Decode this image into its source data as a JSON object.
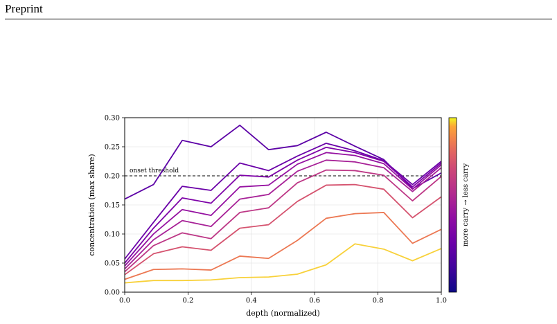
{
  "page": {
    "running_head": "Preprint"
  },
  "chart_data": {
    "type": "line",
    "title": "",
    "xlabel": "depth (normalized)",
    "ylabel": "concentration (max share)",
    "xlim": [
      0.0,
      1.0
    ],
    "ylim": [
      0.0,
      0.3
    ],
    "xticks": [
      0.0,
      0.2,
      0.4,
      0.6,
      0.8,
      1.0
    ],
    "xtick_labels": [
      "0.0",
      "0.2",
      "0.4",
      "0.6",
      "0.8",
      "1.0"
    ],
    "yticks": [
      0.0,
      0.05,
      0.1,
      0.15,
      0.2,
      0.25,
      0.3
    ],
    "ytick_labels": [
      "0.00",
      "0.05",
      "0.10",
      "0.15",
      "0.20",
      "0.25",
      "0.30"
    ],
    "grid": true,
    "threshold": {
      "y": 0.2,
      "label": "onset threshold",
      "style": "dashed",
      "color": "#000000"
    },
    "colorbar": {
      "label": "more carry  →  less carry",
      "colormap": "plasma",
      "position": "right"
    },
    "x": [
      0.0,
      0.0909,
      0.1818,
      0.2727,
      0.3636,
      0.4545,
      0.5455,
      0.6364,
      0.7273,
      0.8182,
      0.9091,
      1.0
    ],
    "series": [
      {
        "color": "#5c01a6",
        "values": [
          0.16,
          0.185,
          0.261,
          0.25,
          0.287,
          0.245,
          0.252,
          0.275,
          0.251,
          0.228,
          0.178,
          0.205
        ]
      },
      {
        "color": "#6a00a8",
        "values": [
          0.057,
          0.12,
          0.182,
          0.175,
          0.222,
          0.209,
          0.234,
          0.256,
          0.243,
          0.226,
          0.185,
          0.225
        ]
      },
      {
        "color": "#7e03a8",
        "values": [
          0.05,
          0.11,
          0.162,
          0.153,
          0.201,
          0.198,
          0.227,
          0.249,
          0.24,
          0.225,
          0.181,
          0.222
        ]
      },
      {
        "color": "#9511a1",
        "values": [
          0.045,
          0.1,
          0.142,
          0.132,
          0.181,
          0.184,
          0.22,
          0.24,
          0.235,
          0.221,
          0.177,
          0.219
        ]
      },
      {
        "color": "#a72197",
        "values": [
          0.04,
          0.09,
          0.123,
          0.113,
          0.16,
          0.168,
          0.208,
          0.227,
          0.224,
          0.214,
          0.173,
          0.214
        ]
      },
      {
        "color": "#bd3786",
        "values": [
          0.035,
          0.08,
          0.102,
          0.092,
          0.137,
          0.145,
          0.188,
          0.21,
          0.209,
          0.201,
          0.157,
          0.199
        ]
      },
      {
        "color": "#d5536f",
        "values": [
          0.03,
          0.066,
          0.078,
          0.072,
          0.11,
          0.116,
          0.156,
          0.184,
          0.185,
          0.177,
          0.128,
          0.164
        ]
      },
      {
        "color": "#ec7853",
        "values": [
          0.022,
          0.039,
          0.04,
          0.038,
          0.062,
          0.058,
          0.089,
          0.127,
          0.135,
          0.137,
          0.084,
          0.108
        ]
      },
      {
        "color": "#f8d13a",
        "values": [
          0.016,
          0.02,
          0.02,
          0.021,
          0.025,
          0.026,
          0.031,
          0.047,
          0.083,
          0.074,
          0.054,
          0.075
        ]
      }
    ]
  }
}
